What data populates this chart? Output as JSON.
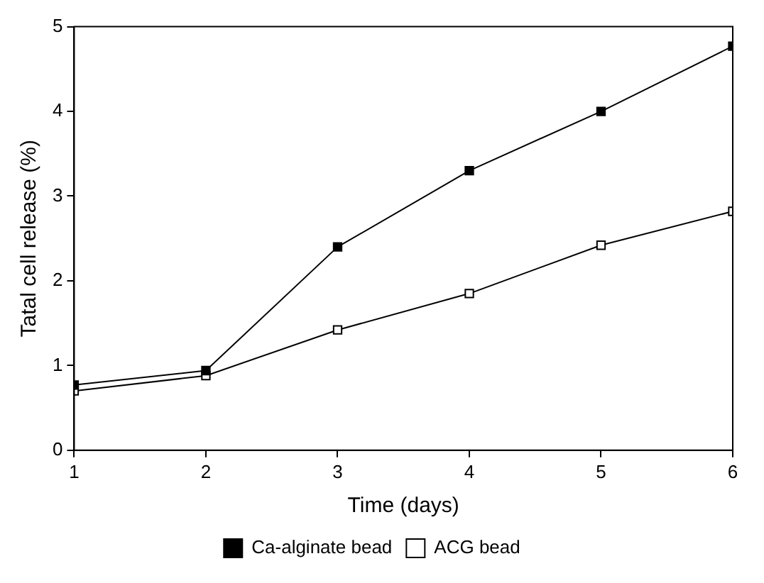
{
  "chart_data": {
    "type": "line",
    "xlabel": "Time (days)",
    "ylabel": "Tatal cell release (%)",
    "x": [
      1,
      2,
      3,
      4,
      5,
      6
    ],
    "series": [
      {
        "name": "Ca-alginate bead",
        "color": "#000000",
        "values": [
          0.77,
          0.94,
          2.4,
          3.3,
          4.0,
          4.77
        ]
      },
      {
        "name": "ACG bead",
        "color": "#000000",
        "values": [
          0.7,
          0.88,
          1.42,
          1.85,
          2.42,
          2.82
        ]
      }
    ],
    "xlim": [
      1,
      6
    ],
    "xticks": [
      1,
      2,
      3,
      4,
      5,
      6
    ],
    "ylim": [
      0,
      5
    ],
    "yticks": [
      0,
      1,
      2,
      3,
      4,
      5
    ],
    "grid": false,
    "legend": "bottom",
    "marker": "square",
    "line_style": "solid"
  }
}
